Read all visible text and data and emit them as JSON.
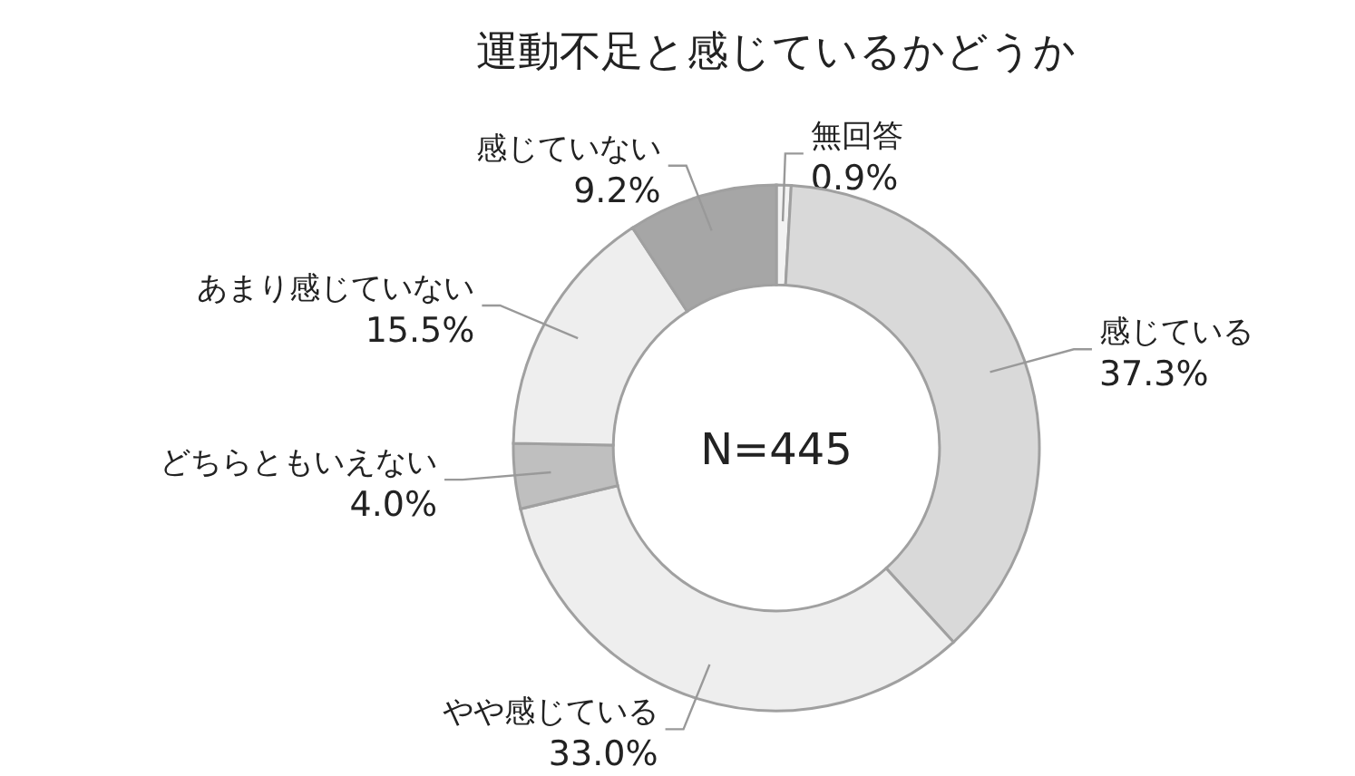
{
  "chart_data": {
    "type": "donut",
    "title": "運動不足と感じているかどうか",
    "categories": [
      "無回答",
      "感じている",
      "やや感じている",
      "どちらともいえない",
      "あまり感じていない",
      "感じていない"
    ],
    "values": [
      0.9,
      37.3,
      33.0,
      4.0,
      15.5,
      9.2
    ],
    "colors": [
      "#f2f2f2",
      "#d9d9d9",
      "#eeeeee",
      "#bfbfbf",
      "#eeeeee",
      "#a6a6a6"
    ],
    "value_labels": [
      "0.9%",
      "37.3%",
      "33.0%",
      "4.0%",
      "15.5%",
      "9.2%"
    ],
    "annotations": [
      "N=445"
    ]
  }
}
